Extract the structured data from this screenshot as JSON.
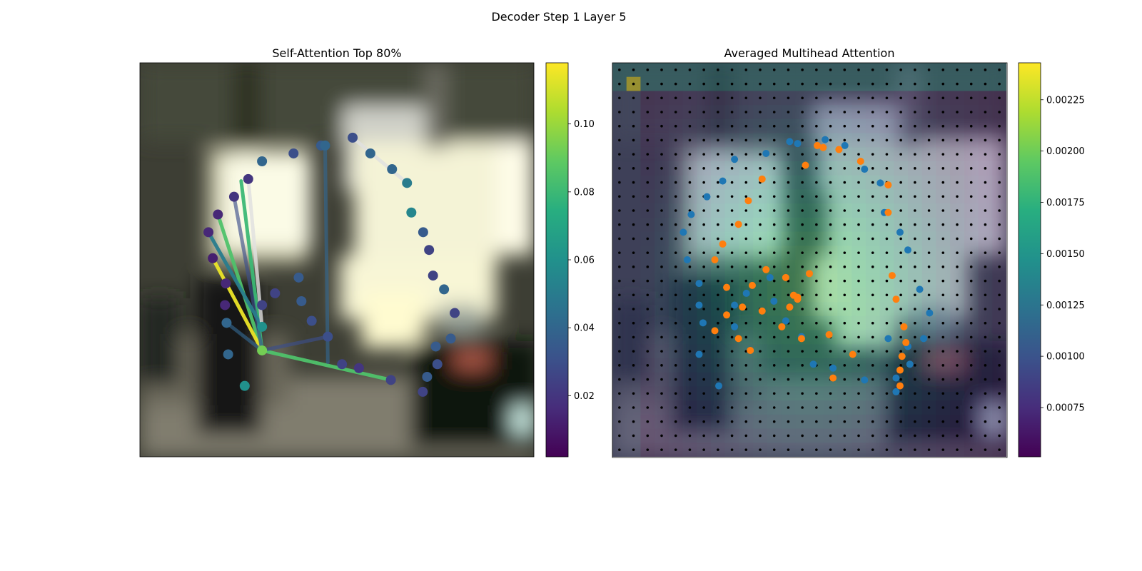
{
  "figure": {
    "title": "Decoder Step 1 Layer 5"
  },
  "chart_data": [
    {
      "type": "scatter",
      "title": "Self-Attention Top 80%",
      "background": "blurred street photo (image patch)",
      "colormap": "viridis",
      "colorbar": {
        "range": [
          0.002,
          0.118
        ],
        "ticks": [
          0.02,
          0.04,
          0.06,
          0.08,
          0.1
        ],
        "tick_labels": [
          "0.02",
          "0.04",
          "0.06",
          "0.08",
          "0.10"
        ]
      },
      "query_point": {
        "x": 0.31,
        "y": 0.73,
        "value": 0.093
      },
      "points": [
        {
          "x": 0.31,
          "y": 0.25,
          "v": 0.04
        },
        {
          "x": 0.39,
          "y": 0.23,
          "v": 0.03
        },
        {
          "x": 0.46,
          "y": 0.21,
          "v": 0.035
        },
        {
          "x": 0.47,
          "y": 0.21,
          "v": 0.04
        },
        {
          "x": 0.54,
          "y": 0.19,
          "v": 0.03
        },
        {
          "x": 0.585,
          "y": 0.23,
          "v": 0.04
        },
        {
          "x": 0.64,
          "y": 0.27,
          "v": 0.04
        },
        {
          "x": 0.678,
          "y": 0.305,
          "v": 0.05
        },
        {
          "x": 0.689,
          "y": 0.38,
          "v": 0.055
        },
        {
          "x": 0.719,
          "y": 0.43,
          "v": 0.035
        },
        {
          "x": 0.734,
          "y": 0.475,
          "v": 0.025
        },
        {
          "x": 0.744,
          "y": 0.54,
          "v": 0.025
        },
        {
          "x": 0.772,
          "y": 0.575,
          "v": 0.04
        },
        {
          "x": 0.799,
          "y": 0.635,
          "v": 0.025
        },
        {
          "x": 0.789,
          "y": 0.7,
          "v": 0.035
        },
        {
          "x": 0.751,
          "y": 0.72,
          "v": 0.035
        },
        {
          "x": 0.755,
          "y": 0.765,
          "v": 0.03
        },
        {
          "x": 0.729,
          "y": 0.797,
          "v": 0.035
        },
        {
          "x": 0.718,
          "y": 0.835,
          "v": 0.025
        },
        {
          "x": 0.275,
          "y": 0.295,
          "v": 0.02
        },
        {
          "x": 0.239,
          "y": 0.34,
          "v": 0.02
        },
        {
          "x": 0.198,
          "y": 0.385,
          "v": 0.015
        },
        {
          "x": 0.174,
          "y": 0.43,
          "v": 0.015
        },
        {
          "x": 0.185,
          "y": 0.496,
          "v": 0.012
        },
        {
          "x": 0.218,
          "y": 0.56,
          "v": 0.015
        },
        {
          "x": 0.216,
          "y": 0.615,
          "v": 0.015
        },
        {
          "x": 0.22,
          "y": 0.66,
          "v": 0.04
        },
        {
          "x": 0.224,
          "y": 0.74,
          "v": 0.04
        },
        {
          "x": 0.266,
          "y": 0.82,
          "v": 0.06
        },
        {
          "x": 0.31,
          "y": 0.67,
          "v": 0.06
        },
        {
          "x": 0.31,
          "y": 0.615,
          "v": 0.025
        },
        {
          "x": 0.343,
          "y": 0.585,
          "v": 0.025
        },
        {
          "x": 0.403,
          "y": 0.545,
          "v": 0.035
        },
        {
          "x": 0.41,
          "y": 0.605,
          "v": 0.035
        },
        {
          "x": 0.436,
          "y": 0.655,
          "v": 0.03
        },
        {
          "x": 0.477,
          "y": 0.695,
          "v": 0.03
        },
        {
          "x": 0.513,
          "y": 0.765,
          "v": 0.025
        },
        {
          "x": 0.556,
          "y": 0.775,
          "v": 0.02
        },
        {
          "x": 0.637,
          "y": 0.805,
          "v": 0.025
        }
      ],
      "edges": [
        {
          "from": [
            0.31,
            0.73
          ],
          "to": [
            0.637,
            0.805
          ],
          "v": 0.085
        },
        {
          "from": [
            0.31,
            0.73
          ],
          "to": [
            0.198,
            0.385
          ],
          "v": 0.085
        },
        {
          "from": [
            0.31,
            0.73
          ],
          "to": [
            0.185,
            0.496
          ],
          "v": 0.115
        },
        {
          "from": [
            0.31,
            0.73
          ],
          "to": [
            0.257,
            0.3
          ],
          "v": 0.08
        },
        {
          "from": [
            0.31,
            0.73
          ],
          "to": [
            0.239,
            0.34
          ],
          "v": 0.03
        },
        {
          "from": [
            0.31,
            0.73
          ],
          "to": [
            0.22,
            0.66
          ],
          "v": 0.04
        },
        {
          "from": [
            0.31,
            0.67
          ],
          "to": [
            0.174,
            0.43
          ],
          "v": 0.05
        },
        {
          "from": [
            0.31,
            0.67
          ],
          "to": [
            0.275,
            0.295
          ],
          "v": 0.005
        },
        {
          "from": [
            0.31,
            0.73
          ],
          "to": [
            0.477,
            0.695
          ],
          "v": 0.03
        },
        {
          "from": [
            0.477,
            0.76
          ],
          "to": [
            0.47,
            0.205
          ],
          "v": 0.04
        },
        {
          "from": [
            0.54,
            0.19
          ],
          "to": [
            0.678,
            0.305
          ],
          "v": 0.005
        }
      ]
    },
    {
      "type": "heatmap",
      "title": "Averaged Multihead Attention",
      "grid_size": [
        28,
        28
      ],
      "colormap": "viridis",
      "colorbar": {
        "range": [
          0.00051,
          0.00243
        ],
        "ticks": [
          0.00075,
          0.001,
          0.00125,
          0.0015,
          0.00175,
          0.002,
          0.00225
        ],
        "tick_labels": [
          "0.00075",
          "0.00100",
          "0.00125",
          "0.00150",
          "0.00175",
          "0.00200",
          "0.00225"
        ]
      },
      "peak_cell": {
        "row": 1,
        "col": 1,
        "value": 0.00243
      },
      "overlays": {
        "grid_points_color": "#000000",
        "blue_points_color": "#1f77b4",
        "orange_points_color": "#ff7f0e"
      },
      "blue_points": [
        [
          0.45,
          0.2
        ],
        [
          0.47,
          0.205
        ],
        [
          0.54,
          0.195
        ],
        [
          0.59,
          0.21
        ],
        [
          0.64,
          0.27
        ],
        [
          0.68,
          0.305
        ],
        [
          0.69,
          0.38
        ],
        [
          0.73,
          0.43
        ],
        [
          0.75,
          0.475
        ],
        [
          0.78,
          0.575
        ],
        [
          0.805,
          0.635
        ],
        [
          0.79,
          0.7
        ],
        [
          0.75,
          0.72
        ],
        [
          0.755,
          0.765
        ],
        [
          0.72,
          0.8
        ],
        [
          0.72,
          0.835
        ],
        [
          0.31,
          0.245
        ],
        [
          0.39,
          0.23
        ],
        [
          0.28,
          0.3
        ],
        [
          0.24,
          0.34
        ],
        [
          0.2,
          0.385
        ],
        [
          0.18,
          0.43
        ],
        [
          0.19,
          0.5
        ],
        [
          0.22,
          0.56
        ],
        [
          0.22,
          0.615
        ],
        [
          0.23,
          0.66
        ],
        [
          0.22,
          0.74
        ],
        [
          0.27,
          0.82
        ],
        [
          0.31,
          0.67
        ],
        [
          0.31,
          0.615
        ],
        [
          0.34,
          0.585
        ],
        [
          0.4,
          0.545
        ],
        [
          0.41,
          0.605
        ],
        [
          0.44,
          0.655
        ],
        [
          0.48,
          0.695
        ],
        [
          0.51,
          0.765
        ],
        [
          0.56,
          0.775
        ],
        [
          0.64,
          0.805
        ],
        [
          0.7,
          0.7
        ]
      ],
      "orange_points": [
        [
          0.52,
          0.21
        ],
        [
          0.535,
          0.215
        ],
        [
          0.575,
          0.22
        ],
        [
          0.49,
          0.26
        ],
        [
          0.38,
          0.295
        ],
        [
          0.345,
          0.35
        ],
        [
          0.63,
          0.25
        ],
        [
          0.7,
          0.31
        ],
        [
          0.7,
          0.38
        ],
        [
          0.32,
          0.41
        ],
        [
          0.28,
          0.46
        ],
        [
          0.26,
          0.5
        ],
        [
          0.29,
          0.57
        ],
        [
          0.355,
          0.565
        ],
        [
          0.39,
          0.525
        ],
        [
          0.44,
          0.545
        ],
        [
          0.5,
          0.535
        ],
        [
          0.45,
          0.62
        ],
        [
          0.38,
          0.63
        ],
        [
          0.33,
          0.62
        ],
        [
          0.29,
          0.64
        ],
        [
          0.32,
          0.7
        ],
        [
          0.35,
          0.73
        ],
        [
          0.43,
          0.67
        ],
        [
          0.48,
          0.7
        ],
        [
          0.55,
          0.69
        ],
        [
          0.61,
          0.74
        ],
        [
          0.71,
          0.54
        ],
        [
          0.72,
          0.6
        ],
        [
          0.74,
          0.67
        ],
        [
          0.745,
          0.71
        ],
        [
          0.735,
          0.745
        ],
        [
          0.73,
          0.78
        ],
        [
          0.73,
          0.82
        ],
        [
          0.56,
          0.8
        ],
        [
          0.26,
          0.68
        ],
        [
          0.47,
          0.595
        ],
        [
          0.46,
          0.59
        ],
        [
          0.47,
          0.6
        ]
      ]
    }
  ]
}
